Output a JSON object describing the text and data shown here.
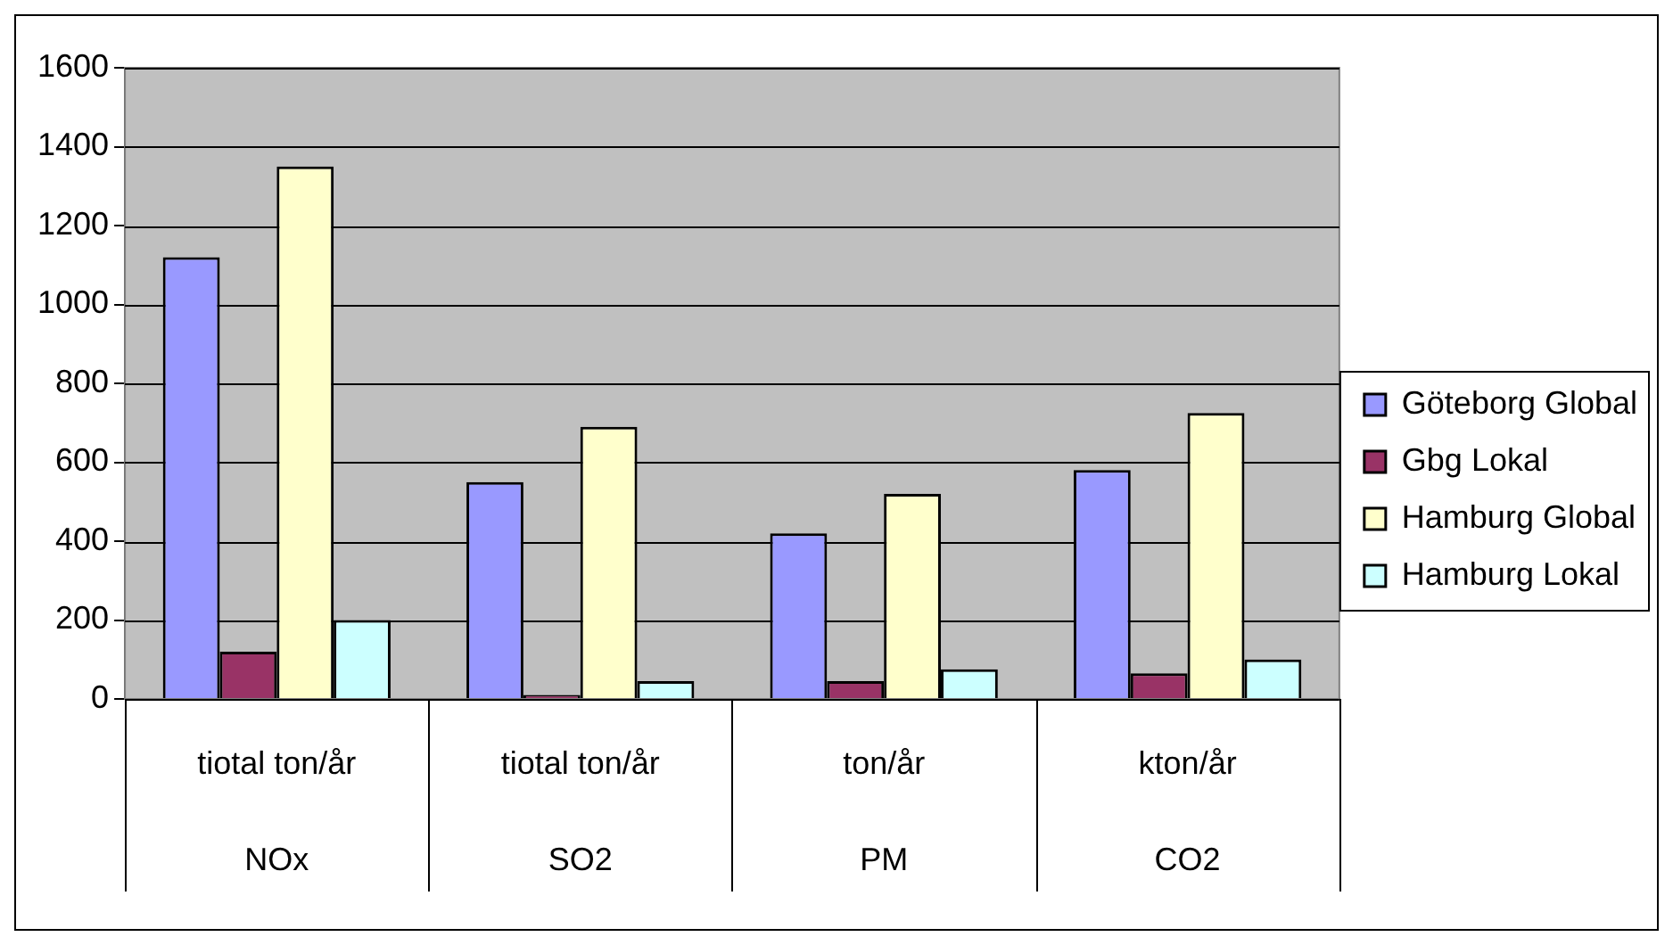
{
  "chart_data": {
    "type": "bar",
    "categories": [
      "tiotal ton/år\nNOx",
      "tiotal ton/år\nSO2",
      "ton/år\nPM",
      "kton/år\nCO2"
    ],
    "series": [
      {
        "name": "Göteborg Global",
        "color": "#9999ff",
        "values": [
          1120,
          550,
          420,
          580
        ]
      },
      {
        "name": "Gbg Lokal",
        "color": "#993366",
        "values": [
          120,
          10,
          45,
          65
        ]
      },
      {
        "name": "Hamburg Global",
        "color": "#ffffcc",
        "values": [
          1350,
          690,
          520,
          725
        ]
      },
      {
        "name": "Hamburg Lokal",
        "color": "#ccffff",
        "values": [
          200,
          45,
          75,
          100
        ]
      }
    ],
    "ylim": [
      0,
      1600
    ],
    "yticks": [
      0,
      200,
      400,
      600,
      800,
      {
        "value": 1000,
        "label": "1000"
      },
      {
        "value": 1200,
        "label": "1200"
      },
      {
        "value": 1400,
        "label": "1400"
      },
      {
        "value": 1600,
        "label": "1600"
      }
    ],
    "grid": "y",
    "legend": "right"
  }
}
